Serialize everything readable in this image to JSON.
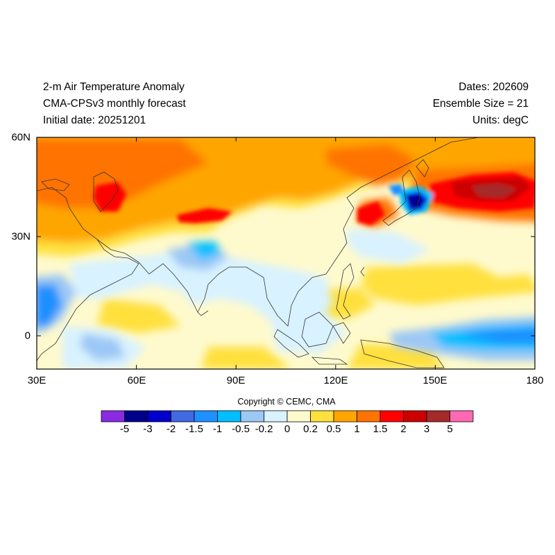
{
  "header": {
    "title": "2-m Air Temperature Anomaly",
    "model": "CMA-CPSv3 monthly forecast",
    "initial_date": "Initial date: 20251201",
    "dates": "Dates: 202609",
    "ensemble": "Ensemble Size = 21",
    "units": "Units: degC"
  },
  "map": {
    "lon_range": [
      30,
      180
    ],
    "lat_range": [
      -10,
      60
    ],
    "lon_ticks": [
      "30E",
      "60E",
      "90E",
      "120E",
      "150E",
      "180"
    ],
    "lat_ticks": [
      "60N",
      "30N",
      "0"
    ]
  },
  "copyright": "Copyright © CEMC, CMA",
  "colorbar": {
    "colors": [
      "#8a2be2",
      "#00008b",
      "#0000cd",
      "#4169e1",
      "#1e90ff",
      "#00bfff",
      "#9cc8f5",
      "#d8f2ff",
      "#fffacd",
      "#ffe03d",
      "#ffa500",
      "#ff7300",
      "#ff0000",
      "#cc0000",
      "#a52a2a",
      "#ff69b4"
    ],
    "labels": [
      "-5",
      "-3",
      "-2",
      "-1.5",
      "-1",
      "-0.5",
      "-0.2",
      "0",
      "0.2",
      "0.5",
      "1",
      "1.5",
      "2",
      "3",
      "5"
    ]
  }
}
